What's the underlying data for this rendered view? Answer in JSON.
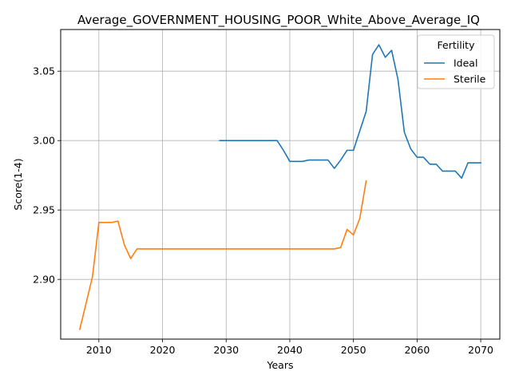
{
  "chart_data": {
    "type": "line",
    "title": "Average_GOVERNMENT_HOUSING_POOR_White_Above_Average_IQ",
    "xlabel": "Years",
    "ylabel": "Score(1-4)",
    "xlim": [
      2004,
      2073
    ],
    "ylim": [
      2.857,
      3.08
    ],
    "xticks": [
      2010,
      2020,
      2030,
      2040,
      2050,
      2060,
      2070
    ],
    "yticks": [
      2.9,
      2.95,
      3.0,
      3.05
    ],
    "ytick_labels": [
      "2.90",
      "2.95",
      "3.00",
      "3.05"
    ],
    "grid": true,
    "legend": {
      "title": "Fertility",
      "placement": "top-right"
    },
    "series": [
      {
        "name": "Ideal",
        "color": "#1f77b4",
        "x": [
          2029,
          2030,
          2031,
          2032,
          2033,
          2034,
          2035,
          2036,
          2037,
          2038,
          2039,
          2040,
          2041,
          2042,
          2043,
          2044,
          2045,
          2046,
          2047,
          2048,
          2049,
          2050,
          2051,
          2052,
          2053,
          2054,
          2055,
          2056,
          2057,
          2058,
          2059,
          2060,
          2061,
          2062,
          2063,
          2064,
          2065,
          2066,
          2067,
          2068,
          2069,
          2070
        ],
        "y": [
          3.0,
          3.0,
          3.0,
          3.0,
          3.0,
          3.0,
          3.0,
          3.0,
          3.0,
          3.0,
          2.993,
          2.985,
          2.985,
          2.985,
          2.986,
          2.986,
          2.986,
          2.986,
          2.98,
          2.986,
          2.993,
          2.993,
          3.007,
          3.021,
          3.062,
          3.069,
          3.06,
          3.065,
          3.044,
          3.006,
          2.994,
          2.988,
          2.988,
          2.983,
          2.983,
          2.978,
          2.978,
          2.978,
          2.973,
          2.984,
          2.984,
          2.984
        ]
      },
      {
        "name": "Sterile",
        "color": "#ff7f0e",
        "x": [
          2007,
          2008,
          2009,
          2010,
          2011,
          2012,
          2013,
          2014,
          2015,
          2016,
          2017,
          2018,
          2019,
          2020,
          2025,
          2030,
          2035,
          2040,
          2045,
          2046,
          2047,
          2048,
          2049,
          2050,
          2051,
          2052
        ],
        "y": [
          2.864,
          2.883,
          2.902,
          2.941,
          2.941,
          2.941,
          2.942,
          2.925,
          2.915,
          2.922,
          2.922,
          2.922,
          2.922,
          2.922,
          2.922,
          2.922,
          2.922,
          2.922,
          2.922,
          2.922,
          2.922,
          2.923,
          2.936,
          2.932,
          2.944,
          2.971
        ]
      }
    ]
  }
}
